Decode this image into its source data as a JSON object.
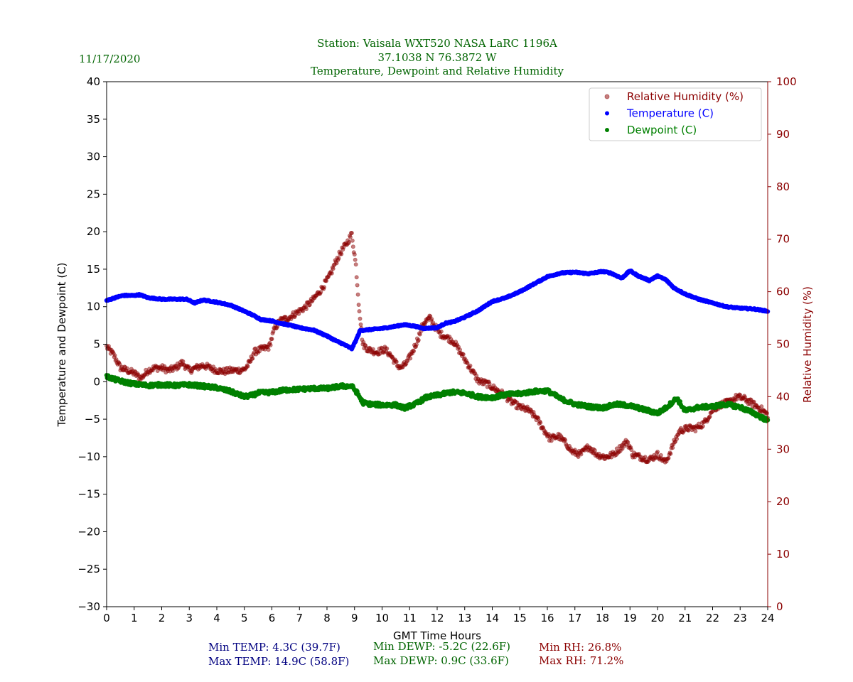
{
  "header": {
    "date": "11/17/2020",
    "station_line": "Station:  Vaisala WXT520  NASA LaRC 1196A",
    "coords_line": "37.1038 N 76.3872 W",
    "subtitle": "Temperature, Dewpoint and Relative Humidity"
  },
  "stats": {
    "min_temp": "Min TEMP: 4.3C (39.7F)",
    "max_temp": "Max TEMP: 14.9C (58.8F)",
    "min_dewp": "Min DEWP: -5.2C (22.6F)",
    "max_dewp": "Max DEWP: 0.9C (33.6F)",
    "min_rh": "Min RH: 26.8%",
    "max_rh": "Max RH: 71.2%"
  },
  "colors": {
    "temperature": "#0000ff",
    "dewpoint": "#008000",
    "rh": "#8b0000",
    "header": "#006400",
    "stat_temp": "#000080"
  },
  "chart_data": {
    "type": "scatter",
    "title": "Temperature, Dewpoint and Relative Humidity",
    "xlabel": "GMT Time Hours",
    "ylabel": "Temperature and Dewpoint (C)",
    "y2label": "Relative Humidity (%)",
    "xlim": [
      0,
      24
    ],
    "ylim": [
      -30,
      40
    ],
    "y2lim": [
      0,
      100
    ],
    "xticks": [
      0,
      1,
      2,
      3,
      4,
      5,
      6,
      7,
      8,
      9,
      10,
      11,
      12,
      13,
      14,
      15,
      16,
      17,
      18,
      19,
      20,
      21,
      22,
      23,
      24
    ],
    "yticks": [
      -30,
      -25,
      -20,
      -15,
      -10,
      -5,
      0,
      5,
      10,
      15,
      20,
      25,
      30,
      35,
      40
    ],
    "y2ticks": [
      0,
      10,
      20,
      30,
      40,
      50,
      60,
      70,
      80,
      90,
      100
    ],
    "legend_position": "top-right",
    "series": [
      {
        "name": "Relative Humidity (%)",
        "axis": "right",
        "x": [
          0,
          0.25,
          0.5,
          0.75,
          1,
          1.25,
          1.5,
          1.75,
          2,
          2.25,
          2.5,
          2.75,
          3,
          3.25,
          3.5,
          3.75,
          4,
          4.25,
          4.5,
          4.75,
          5,
          5.2,
          5.35,
          5.6,
          5.9,
          6.1,
          6.3,
          6.6,
          6.9,
          7.2,
          7.5,
          7.8,
          8.1,
          8.3,
          8.5,
          8.75,
          8.9,
          9.05,
          9.15,
          9.3,
          9.5,
          9.8,
          10.1,
          10.3,
          10.55,
          10.7,
          10.9,
          11.1,
          11.3,
          11.5,
          11.75,
          11.9,
          12.1,
          12.3,
          12.6,
          12.9,
          13.2,
          13.5,
          13.8,
          14.1,
          14.4,
          14.7,
          15,
          15.3,
          15.6,
          15.9,
          16.1,
          16.4,
          16.7,
          16.9,
          17.2,
          17.5,
          17.8,
          18.1,
          18.4,
          18.7,
          18.9,
          19.1,
          19.4,
          19.7,
          20,
          20.3,
          20.5,
          20.8,
          21.1,
          21.4,
          21.7,
          22,
          22.3,
          22.6,
          22.9,
          23.2,
          23.5,
          23.8,
          24
        ],
        "values": [
          49.5,
          48,
          45.5,
          45,
          44.5,
          43.5,
          45,
          45.5,
          45.5,
          45,
          45.5,
          46.5,
          45,
          45.5,
          46,
          45.5,
          45,
          44.8,
          45,
          45,
          45.2,
          46.5,
          48.5,
          49,
          49.5,
          53,
          54.5,
          55,
          56,
          57,
          58.5,
          60.5,
          63,
          65.5,
          67.5,
          69.5,
          71,
          65,
          58,
          50,
          49,
          48.5,
          49,
          48,
          46,
          45.5,
          46.5,
          48.5,
          51,
          54,
          55,
          53.5,
          52,
          51.5,
          50.5,
          48,
          45.5,
          43,
          42.5,
          41.5,
          40.5,
          39,
          38,
          37.5,
          36,
          33.5,
          32,
          32.5,
          31,
          29.5,
          29,
          30.5,
          29,
          28.5,
          29,
          30.5,
          31.5,
          29,
          28.5,
          28,
          29,
          27.5,
          30,
          33.5,
          34,
          34,
          35,
          37.5,
          38.5,
          39,
          40,
          39.5,
          38.5,
          37.5,
          36.5
        ]
      },
      {
        "name": "Temperature (C)",
        "axis": "left",
        "x": [
          0,
          0.3,
          0.6,
          1,
          1.2,
          1.5,
          2,
          2.5,
          2.9,
          3.2,
          3.5,
          4,
          4.5,
          5,
          5.3,
          5.6,
          6,
          6.3,
          6.7,
          7,
          7.5,
          8,
          8.3,
          8.6,
          8.9,
          9.05,
          9.2,
          9.4,
          10,
          10.5,
          10.8,
          11.2,
          11.5,
          12,
          12.3,
          12.6,
          13,
          13.5,
          14,
          14.5,
          15,
          15.5,
          16,
          16.5,
          17,
          17.5,
          18,
          18.3,
          18.7,
          19,
          19.3,
          19.7,
          20,
          20.3,
          20.6,
          21,
          21.5,
          22,
          22.5,
          23,
          23.5,
          24
        ],
        "values": [
          10.8,
          11.2,
          11.5,
          11.5,
          11.6,
          11.2,
          11,
          11,
          11,
          10.5,
          10.9,
          10.6,
          10.2,
          9.4,
          8.9,
          8.3,
          8.1,
          7.8,
          7.5,
          7.2,
          6.9,
          6.1,
          5.5,
          5,
          4.4,
          5.5,
          6.8,
          6.9,
          7.1,
          7.4,
          7.6,
          7.4,
          7.1,
          7.2,
          7.8,
          8,
          8.6,
          9.5,
          10.7,
          11.2,
          12,
          13,
          14,
          14.5,
          14.6,
          14.4,
          14.7,
          14.5,
          13.8,
          14.8,
          14.1,
          13.5,
          14.1,
          13.6,
          12.5,
          11.7,
          11,
          10.5,
          10,
          9.8,
          9.7,
          9.4
        ]
      },
      {
        "name": "Dewpoint (C)",
        "axis": "left",
        "x": [
          0,
          0.3,
          0.6,
          1,
          1.5,
          2,
          2.5,
          3,
          3.5,
          4,
          4.5,
          5,
          5.3,
          5.5,
          6,
          6.5,
          7,
          7.5,
          8,
          8.5,
          8.9,
          9.1,
          9.3,
          9.6,
          10,
          10.5,
          10.8,
          11.2,
          11.6,
          12,
          12.5,
          13,
          13.5,
          14,
          14.5,
          15,
          15.5,
          16,
          16.5,
          17,
          17.5,
          18,
          18.5,
          19,
          19.5,
          20,
          20.3,
          20.7,
          21,
          21.5,
          22,
          22.5,
          23,
          23.5,
          24
        ],
        "values": [
          0.7,
          0.3,
          0,
          -0.3,
          -0.5,
          -0.4,
          -0.5,
          -0.4,
          -0.6,
          -0.8,
          -1.3,
          -2,
          -1.8,
          -1.5,
          -1.4,
          -1.1,
          -1,
          -0.9,
          -0.9,
          -0.6,
          -0.6,
          -1.5,
          -2.8,
          -3,
          -3.1,
          -3.1,
          -3.5,
          -3,
          -2.1,
          -1.8,
          -1.4,
          -1.5,
          -2,
          -2.1,
          -1.7,
          -1.6,
          -1.3,
          -1.2,
          -2.3,
          -3,
          -3.3,
          -3.5,
          -3,
          -3.2,
          -3.7,
          -4.2,
          -3.5,
          -2.2,
          -3.9,
          -3.4,
          -3.3,
          -3,
          -3.4,
          -4.2,
          -5.2
        ]
      }
    ]
  }
}
